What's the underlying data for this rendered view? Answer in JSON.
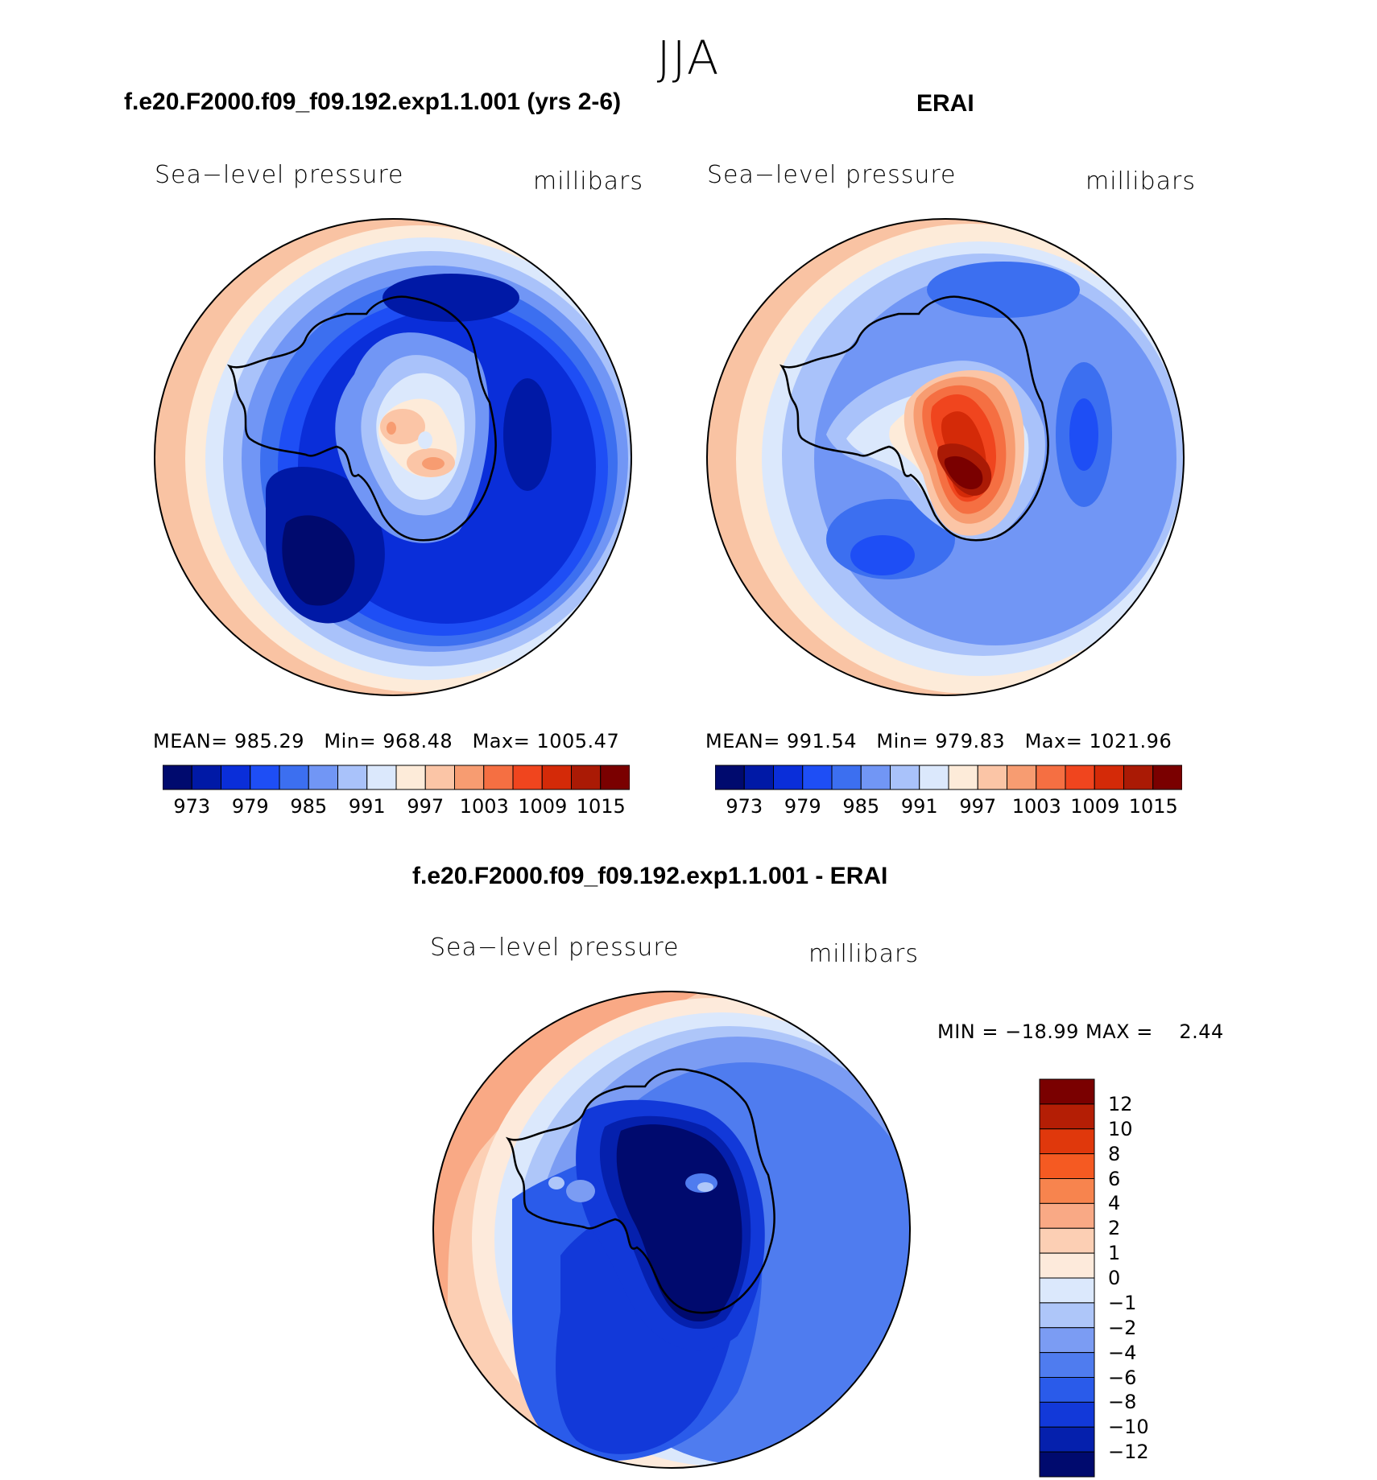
{
  "season": "JJA",
  "panels": [
    {
      "title": "f.e20.F2000.f09_f09.192.exp1.1.001 (yrs 2-6)",
      "variable": "Sea−level pressure",
      "units": "millibars",
      "stats": {
        "mean_label": "MEAN=",
        "mean": "985.29",
        "min_label": "Min=",
        "min": "968.48",
        "max_label": "Max=",
        "max": "1005.47"
      }
    },
    {
      "title": "ERAI",
      "variable": "Sea−level pressure",
      "units": "millibars",
      "stats": {
        "mean_label": "MEAN=",
        "mean": "991.54",
        "min_label": "Min=",
        "min": "979.83",
        "max_label": "Max=",
        "max": "1021.96"
      }
    }
  ],
  "abs_colorbar": {
    "colors": [
      "#000a6e",
      "#0019a6",
      "#0a2ed9",
      "#1e4ef5",
      "#3c6ff0",
      "#7196f5",
      "#a9c2fa",
      "#dbe8fc",
      "#fdebd9",
      "#fbc5a6",
      "#f79c71",
      "#f56f42",
      "#f0451e",
      "#d42a08",
      "#aa1a05",
      "#7a0000"
    ],
    "tick_labels": [
      "973",
      "979",
      "985",
      "991",
      "997",
      "1003",
      "1009",
      "1015"
    ]
  },
  "diff_panel": {
    "title": "f.e20.F2000.f09_f09.192.exp1.1.001 - ERAI",
    "variable": "Sea−level pressure",
    "units": "millibars",
    "min_max": "MIN = −18.99 MAX =    2.44",
    "colorbar": {
      "colors_top_to_bottom": [
        "#7a0000",
        "#b41e05",
        "#e0380c",
        "#f55a22",
        "#f7844e",
        "#f9a985",
        "#fccfb4",
        "#fdeadb",
        "#dbe8fc",
        "#aec6f9",
        "#7b9cf3",
        "#4f7cef",
        "#2a5bea",
        "#1239d9",
        "#0520ad",
        "#000a6e"
      ],
      "tick_labels": [
        "12",
        "10",
        "8",
        "6",
        "4",
        "2",
        "1",
        "0",
        "−1",
        "−2",
        "−4",
        "−6",
        "−8",
        "−10",
        "−12"
      ]
    }
  }
}
